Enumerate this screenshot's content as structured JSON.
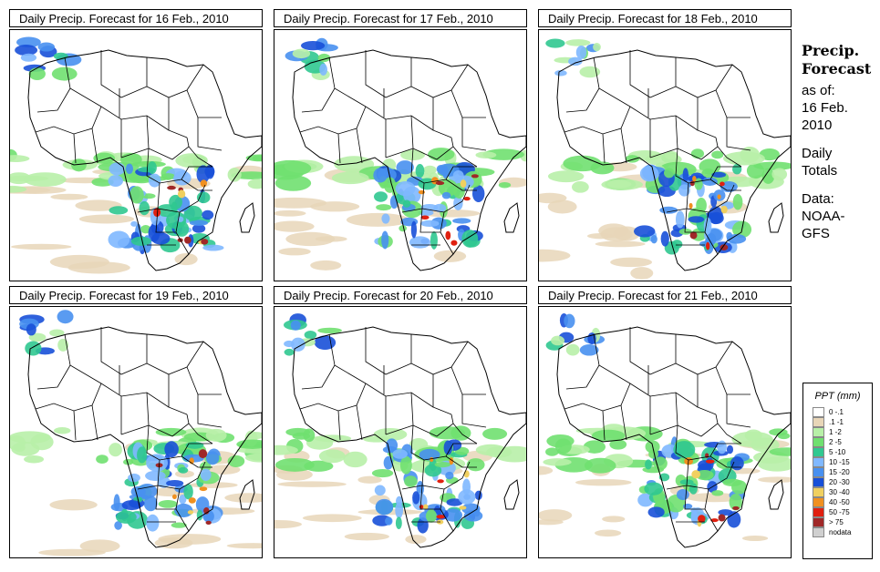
{
  "panels": [
    {
      "title": "Daily Precip. Forecast for  16 Feb., 2010"
    },
    {
      "title": "Daily Precip. Forecast for  17 Feb., 2010"
    },
    {
      "title": "Daily Precip. Forecast for  18 Feb., 2010"
    },
    {
      "title": "Daily Precip. Forecast for  19 Feb., 2010"
    },
    {
      "title": "Daily Precip. Forecast for  20 Feb., 2010"
    },
    {
      "title": "Daily Precip. Forecast for  21 Feb., 2010"
    }
  ],
  "side": {
    "heading1": "Precip.",
    "heading2": "Forecast",
    "asof1": "as of:",
    "asof2": "16 Feb.",
    "asof3": "2010",
    "daily1": "Daily",
    "daily2": "Totals",
    "data1": "Data:",
    "data2": "NOAA-",
    "data3": "GFS"
  },
  "legend": {
    "title": "PPT (mm)",
    "items": [
      {
        "label": "0 -.1",
        "color": "#ffffff"
      },
      {
        "label": ".1 -1",
        "color": "#e8d6b8"
      },
      {
        "label": "1 -2",
        "color": "#b8f0a8"
      },
      {
        "label": "2 -5",
        "color": "#70e070"
      },
      {
        "label": "5 -10",
        "color": "#30c890"
      },
      {
        "label": "10 -15",
        "color": "#80b8ff"
      },
      {
        "label": "15 -20",
        "color": "#4890f0"
      },
      {
        "label": "20 -30",
        "color": "#1850d8"
      },
      {
        "label": "30 -40",
        "color": "#f0d060"
      },
      {
        "label": "40 -50",
        "color": "#f09020"
      },
      {
        "label": "50 -75",
        "color": "#e02010"
      },
      {
        "label": "> 75",
        "color": "#a02828"
      },
      {
        "label": "nodata",
        "color": "#d0d0d0"
      }
    ]
  }
}
